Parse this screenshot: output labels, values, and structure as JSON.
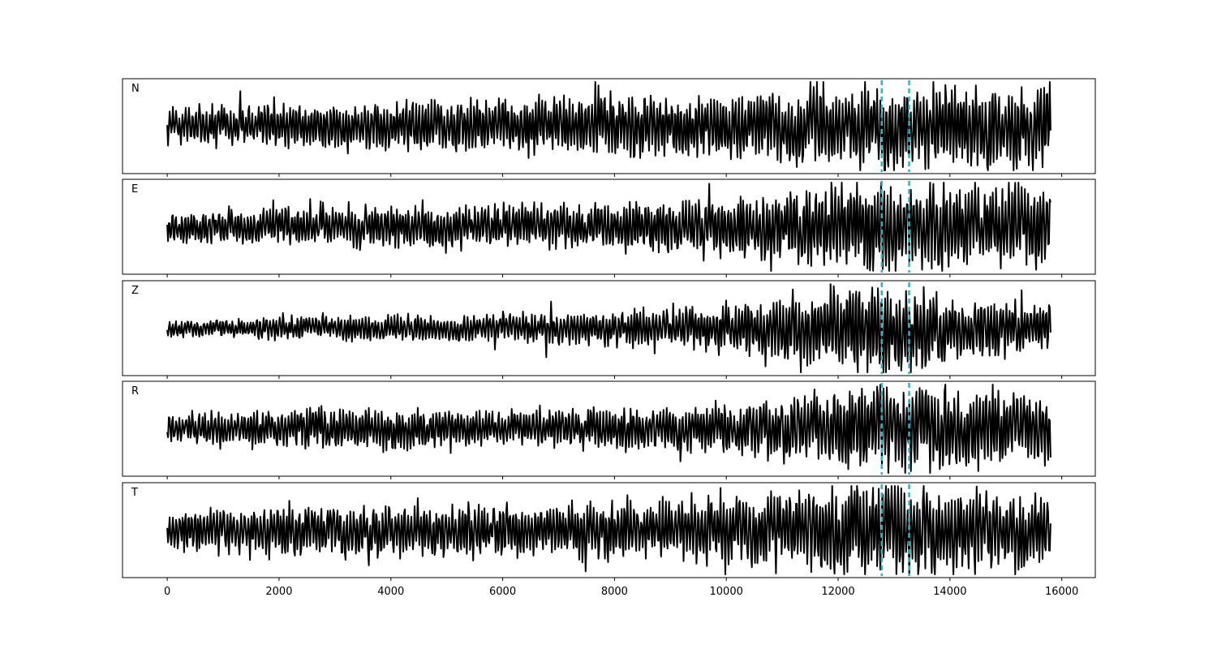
{
  "chart_data": {
    "type": "line",
    "xlim": [
      -800,
      16600
    ],
    "x_ticks": [
      0,
      2000,
      4000,
      6000,
      8000,
      10000,
      12000,
      14000,
      16000
    ],
    "x_tick_labels": [
      "0",
      "2000",
      "4000",
      "6000",
      "8000",
      "10000",
      "12000",
      "14000",
      "16000"
    ],
    "sample_count": 15800,
    "y_ticks_shown": false,
    "grid": false,
    "colors": {
      "trace": "#000000",
      "marker": "#17becf",
      "frame": "#000000"
    },
    "markers": [
      {
        "x": 12780,
        "style": "dashed"
      },
      {
        "x": 13270,
        "style": "dashed"
      }
    ],
    "panels": [
      {
        "label": "N",
        "seed": 11,
        "amplitude": [
          0.35,
          0.45,
          0.55,
          0.65,
          0.8,
          0.85
        ],
        "final_value": -0.1
      },
      {
        "label": "E",
        "seed": 23,
        "amplitude": [
          0.3,
          0.4,
          0.45,
          0.55,
          0.9,
          0.8
        ],
        "final_value": 0.55
      },
      {
        "label": "Z",
        "seed": 37,
        "amplitude": [
          0.15,
          0.25,
          0.3,
          0.4,
          0.9,
          0.45
        ],
        "final_value": -0.1
      },
      {
        "label": "R",
        "seed": 51,
        "amplitude": [
          0.3,
          0.4,
          0.35,
          0.45,
          0.85,
          0.75
        ],
        "final_value": -0.65
      },
      {
        "label": "T",
        "seed": 67,
        "amplitude": [
          0.4,
          0.5,
          0.55,
          0.6,
          0.95,
          0.7
        ],
        "final_value": 0.15
      }
    ]
  }
}
